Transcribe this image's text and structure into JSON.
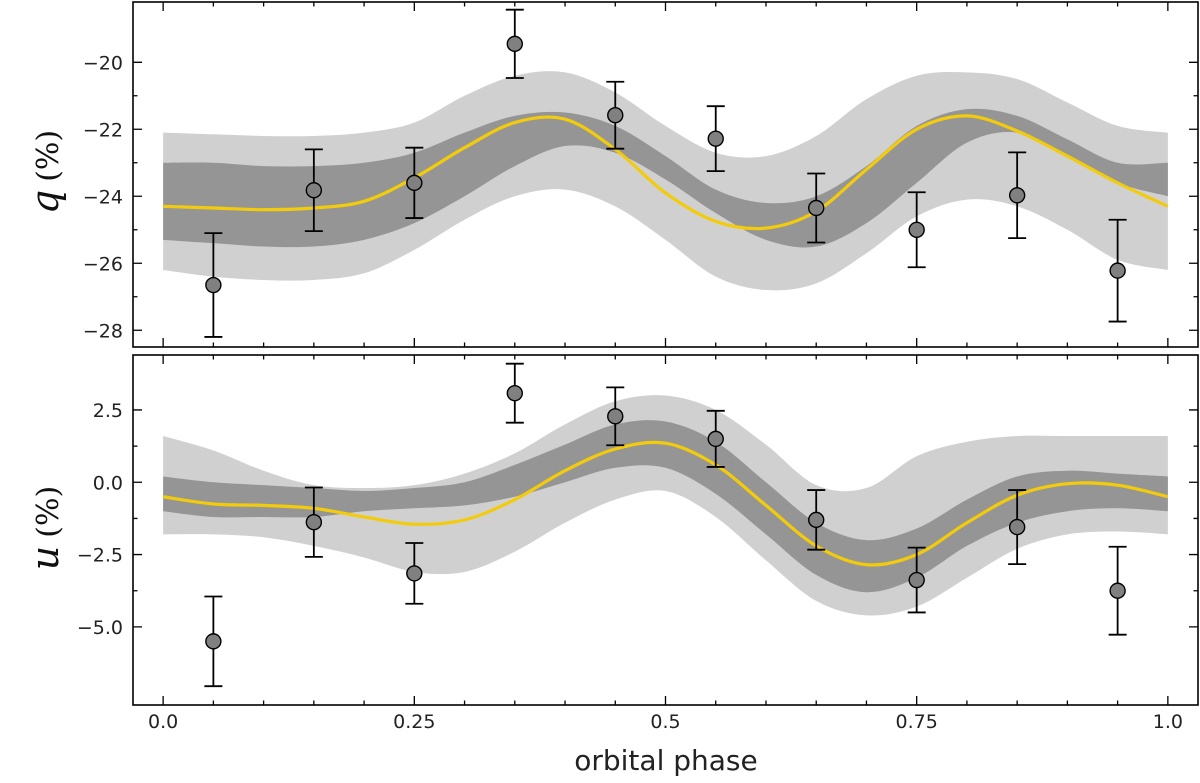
{
  "chart_data": {
    "type": "scatter",
    "xlabel": "orbital phase",
    "xlim": [
      -0.03,
      1.03
    ],
    "xticks": [
      0.0,
      0.25,
      0.5,
      0.75,
      1.0
    ],
    "xtick_labels": [
      "0.0",
      "0.25",
      "0.5",
      "0.75",
      "1.0"
    ],
    "model_color": "#f2cc0c",
    "inner_band_color": "#959595",
    "outer_band_color": "#d0d0d0",
    "marker_color": "#808080",
    "panels": [
      {
        "id": "q",
        "ylabel_var": "q",
        "ylabel_unit": "(%)",
        "ylim": [
          -28.5,
          -18.2
        ],
        "yticks": [
          -20,
          -22,
          -24,
          -26,
          -28
        ],
        "ytick_labels": [
          "−20",
          "−22",
          "−24",
          "−26",
          "−28"
        ],
        "observations": {
          "phase": [
            0.05,
            0.15,
            0.25,
            0.35,
            0.45,
            0.55,
            0.65,
            0.75,
            0.85,
            0.95
          ],
          "value": [
            -26.65,
            -23.82,
            -23.6,
            -19.45,
            -21.58,
            -22.28,
            -24.35,
            -25.0,
            -23.97,
            -26.22
          ],
          "error": [
            1.55,
            1.22,
            1.05,
            1.02,
            1.0,
            0.97,
            1.03,
            1.12,
            1.28,
            1.52
          ]
        },
        "model": {
          "phase": [
            0.0,
            0.05,
            0.1,
            0.15,
            0.2,
            0.25,
            0.3,
            0.35,
            0.4,
            0.45,
            0.5,
            0.55,
            0.6,
            0.65,
            0.7,
            0.75,
            0.8,
            0.85,
            0.9,
            0.95,
            1.0
          ],
          "value": [
            -24.3,
            -24.35,
            -24.4,
            -24.35,
            -24.15,
            -23.45,
            -22.55,
            -21.8,
            -21.7,
            -22.6,
            -23.9,
            -24.75,
            -24.95,
            -24.45,
            -23.2,
            -22.0,
            -21.6,
            -22.05,
            -22.8,
            -23.6,
            -24.3
          ],
          "inner_lower": [
            -25.3,
            -25.4,
            -25.5,
            -25.5,
            -25.3,
            -24.8,
            -24.0,
            -23.1,
            -22.5,
            -22.7,
            -23.5,
            -24.5,
            -25.3,
            -25.5,
            -24.8,
            -23.6,
            -22.4,
            -22.1,
            -22.8,
            -23.6,
            -24.0
          ],
          "inner_upper": [
            -23.0,
            -23.0,
            -23.1,
            -23.1,
            -23.0,
            -22.7,
            -22.1,
            -21.6,
            -21.5,
            -21.9,
            -22.8,
            -23.8,
            -24.2,
            -24.0,
            -23.1,
            -21.9,
            -21.4,
            -21.6,
            -22.3,
            -23.0,
            -23.0
          ],
          "outer_lower": [
            -26.2,
            -26.4,
            -26.5,
            -26.5,
            -26.3,
            -25.6,
            -24.7,
            -24.0,
            -23.8,
            -24.3,
            -25.3,
            -26.4,
            -26.8,
            -26.6,
            -25.7,
            -24.6,
            -24.1,
            -24.3,
            -25.0,
            -25.9,
            -26.2
          ],
          "outer_upper": [
            -22.1,
            -22.15,
            -22.2,
            -22.2,
            -22.1,
            -21.8,
            -21.0,
            -20.4,
            -20.3,
            -20.9,
            -21.9,
            -22.7,
            -22.8,
            -22.2,
            -21.1,
            -20.4,
            -20.3,
            -20.5,
            -21.2,
            -21.9,
            -22.1
          ]
        }
      },
      {
        "id": "u",
        "ylabel_var": "u",
        "ylabel_unit": "(%)",
        "ylim": [
          -7.7,
          4.4
        ],
        "yticks": [
          2.5,
          0.0,
          -2.5,
          -5.0
        ],
        "ytick_labels": [
          "2.5",
          "0.0",
          "−2.5",
          "−5.0"
        ],
        "observations": {
          "phase": [
            0.05,
            0.15,
            0.25,
            0.35,
            0.45,
            0.55,
            0.65,
            0.75,
            0.85,
            0.95
          ],
          "value": [
            -5.5,
            -1.38,
            -3.15,
            3.08,
            2.28,
            1.5,
            -1.3,
            -3.38,
            -1.55,
            -3.75
          ],
          "error": [
            1.55,
            1.2,
            1.05,
            1.02,
            1.0,
            0.97,
            1.03,
            1.12,
            1.28,
            1.52
          ]
        },
        "model": {
          "phase": [
            0.0,
            0.05,
            0.1,
            0.15,
            0.2,
            0.25,
            0.3,
            0.35,
            0.4,
            0.45,
            0.5,
            0.55,
            0.6,
            0.65,
            0.7,
            0.75,
            0.8,
            0.85,
            0.9,
            0.95,
            1.0
          ],
          "value": [
            -0.5,
            -0.75,
            -0.8,
            -0.9,
            -1.2,
            -1.45,
            -1.3,
            -0.6,
            0.4,
            1.15,
            1.35,
            0.6,
            -0.8,
            -2.2,
            -2.85,
            -2.5,
            -1.4,
            -0.45,
            -0.05,
            -0.1,
            -0.5
          ],
          "inner_lower": [
            -1.0,
            -1.2,
            -1.2,
            -1.2,
            -1.0,
            -0.9,
            -0.8,
            -0.5,
            0.0,
            0.5,
            0.5,
            -0.4,
            -1.8,
            -3.2,
            -3.8,
            -3.3,
            -2.2,
            -1.4,
            -1.0,
            -0.9,
            -1.0
          ],
          "inner_upper": [
            0.2,
            0.0,
            -0.1,
            -0.2,
            -0.3,
            -0.2,
            0.0,
            0.6,
            1.3,
            2.0,
            2.1,
            1.4,
            0.0,
            -1.4,
            -2.0,
            -1.6,
            -0.6,
            0.2,
            0.4,
            0.3,
            0.2
          ],
          "outer_lower": [
            -1.8,
            -1.8,
            -1.9,
            -2.2,
            -2.6,
            -3.1,
            -3.1,
            -2.4,
            -1.4,
            -0.6,
            -0.3,
            -1.2,
            -2.7,
            -4.1,
            -4.6,
            -4.3,
            -3.3,
            -2.3,
            -1.8,
            -1.7,
            -1.8
          ],
          "outer_upper": [
            1.6,
            1.1,
            0.4,
            -0.1,
            -0.2,
            -0.1,
            0.3,
            1.0,
            2.0,
            2.8,
            3.0,
            2.5,
            1.3,
            -0.1,
            -0.2,
            0.9,
            1.4,
            1.6,
            1.6,
            1.6,
            1.6
          ]
        }
      }
    ]
  }
}
